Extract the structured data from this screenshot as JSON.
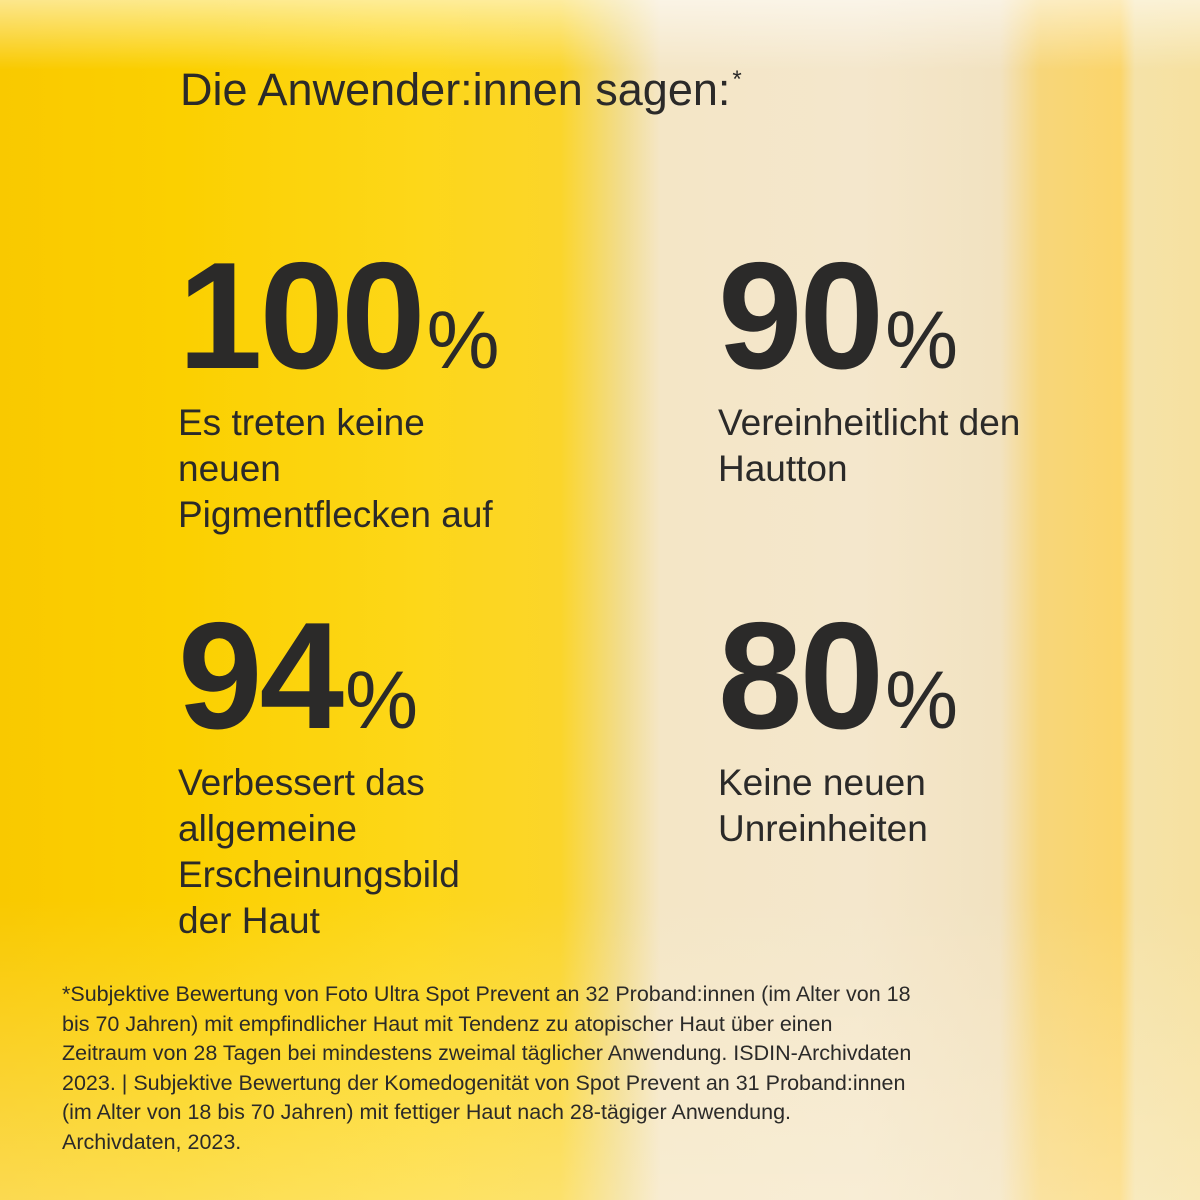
{
  "header": {
    "title": "Die Anwender:innen sagen:",
    "title_mark": "*"
  },
  "stats": [
    {
      "value": "100",
      "unit": "%",
      "description": [
        "Es treten keine",
        "neuen",
        "Pigmentflecken auf"
      ]
    },
    {
      "value": "90",
      "unit": "%",
      "description": [
        "Vereinheitlicht den",
        "Hautton"
      ]
    },
    {
      "value": "94",
      "unit": "%",
      "description": [
        "Verbessert das",
        "allgemeine",
        "Erscheinungsbild",
        "der Haut"
      ]
    },
    {
      "value": "80",
      "unit": "%",
      "description": [
        "Keine neuen",
        "Unreinheiten"
      ]
    }
  ],
  "footnote": [
    "*Subjektive Bewertung von Foto Ultra Spot Prevent an 32 Proband:innen (im Alter von 18",
    "bis 70 Jahren) mit empfindlicher Haut mit Tendenz zu atopischer Haut über einen",
    "Zeitraum von 28 Tagen bei mindestens zweimal täglicher Anwendung. ISDIN-Archivdaten",
    "2023. | Subjektive Bewertung der Komedogenität von Spot Prevent an 31 Proband:innen",
    "(im Alter von 18 bis 70 Jahren) mit fettiger Haut nach 28-tägiger Anwendung.",
    "Archivdaten, 2023."
  ]
}
